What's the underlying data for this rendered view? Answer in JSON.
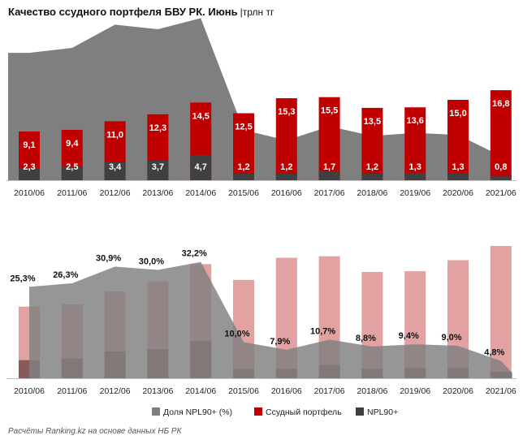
{
  "header": {
    "title": "Качество ссудного портфеля БВУ РК. Июнь",
    "unit": "|трлн тг"
  },
  "source_note": "Расчёты Ranking.kz на основе данных НБ РК",
  "colors": {
    "loans": "#c00000",
    "npl": "#404040",
    "share_area": "#7f7f7f",
    "loans_light": "#e2a2a2",
    "loans_mid": "#b84a4a",
    "npl_light": "#8a5a5a"
  },
  "chart_data": [
    {
      "type": "bar",
      "title": "Качество ссудного портфеля БВУ РК. Июнь",
      "unit": "трлн тг",
      "categories": [
        "2010/06",
        "2011/06",
        "2012/06",
        "2013/06",
        "2014/06",
        "2015/06",
        "2016/06",
        "2017/06",
        "2018/06",
        "2019/06",
        "2020/06",
        "2021/06"
      ],
      "series": [
        {
          "name": "Ссудный портфель",
          "values": [
            9.1,
            9.4,
            11.0,
            12.3,
            14.5,
            12.5,
            15.3,
            15.5,
            13.5,
            13.6,
            15.0,
            16.8
          ],
          "labels": [
            "9,1",
            "9,4",
            "11,0",
            "12,3",
            "14,5",
            "12,5",
            "15,3",
            "15,5",
            "13,5",
            "13,6",
            "15,0",
            "16,8"
          ]
        },
        {
          "name": "NPL90+",
          "values": [
            2.3,
            2.5,
            3.4,
            3.7,
            4.7,
            1.2,
            1.2,
            1.7,
            1.2,
            1.3,
            1.3,
            0.8
          ],
          "labels": [
            "2,3",
            "2,5",
            "3,4",
            "3,7",
            "4,7",
            "1,2",
            "1,2",
            "1,7",
            "1,2",
            "1,3",
            "1,3",
            "0,8"
          ]
        },
        {
          "name": "Доля NPL90+ (%)",
          "values": [
            25.3,
            26.3,
            30.9,
            30.0,
            32.2,
            10.0,
            7.9,
            10.7,
            8.8,
            9.4,
            9.0,
            4.8
          ]
        }
      ]
    },
    {
      "type": "bar",
      "categories": [
        "2010/06",
        "2011/06",
        "2012/06",
        "2013/06",
        "2014/06",
        "2015/06",
        "2016/06",
        "2017/06",
        "2018/06",
        "2019/06",
        "2020/06",
        "2021/06"
      ],
      "series": [
        {
          "name": "Доля NPL90+ (%)",
          "values": [
            25.3,
            26.3,
            30.9,
            30.0,
            32.2,
            10.0,
            7.9,
            10.7,
            8.8,
            9.4,
            9.0,
            4.8
          ],
          "labels": [
            "25,3%",
            "26,3%",
            "30,9%",
            "30,0%",
            "32,2%",
            "10,0%",
            "7,9%",
            "10,7%",
            "8,8%",
            "9,4%",
            "9,0%",
            "4,8%"
          ]
        },
        {
          "name": "Ссудный портфель",
          "values": [
            9.1,
            9.4,
            11.0,
            12.3,
            14.5,
            12.5,
            15.3,
            15.5,
            13.5,
            13.6,
            15.0,
            16.8
          ]
        },
        {
          "name": "NPL90+",
          "values": [
            2.3,
            2.5,
            3.4,
            3.7,
            4.7,
            1.2,
            1.2,
            1.7,
            1.2,
            1.3,
            1.3,
            0.8
          ]
        }
      ],
      "legend": {
        "position": "bottom",
        "items": [
          "Доля NPL90+ (%)",
          "Ссудный портфель",
          "NPL90+"
        ]
      }
    }
  ]
}
